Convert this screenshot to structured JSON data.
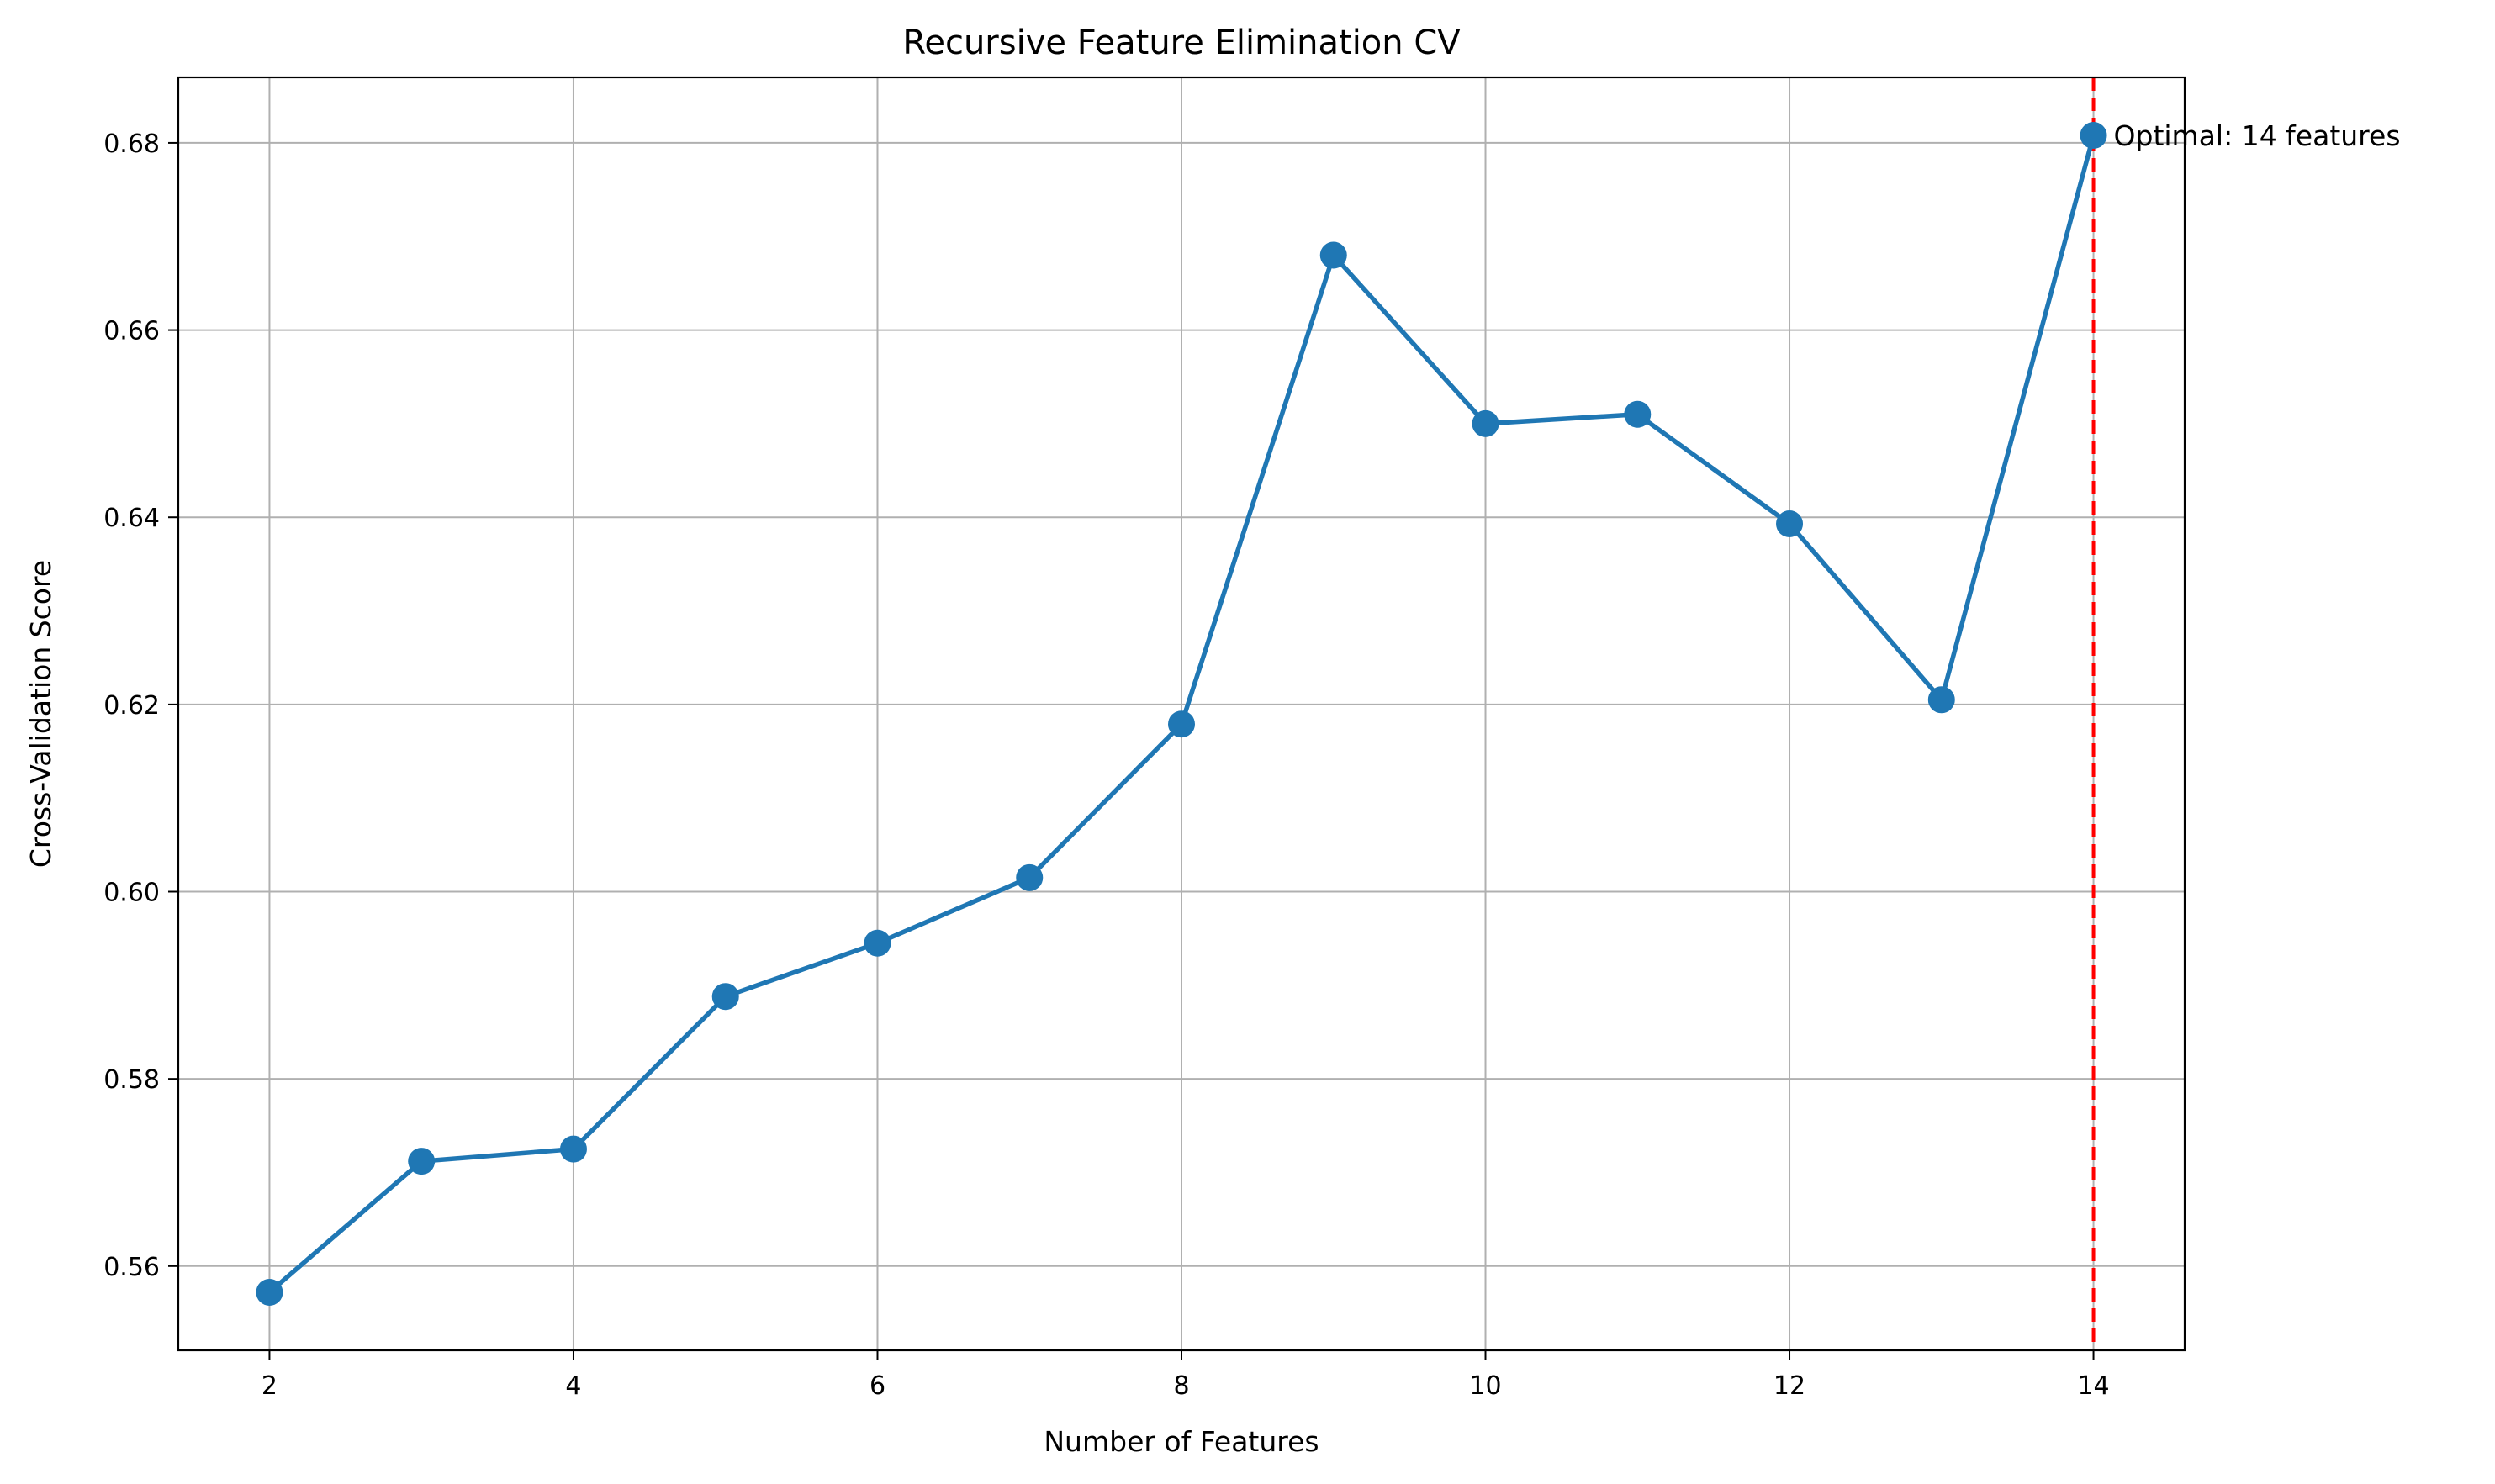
{
  "chart_data": {
    "type": "line",
    "title": "Recursive Feature Elimination CV",
    "xlabel": "Number of Features",
    "ylabel": "Cross-Validation Score",
    "x": [
      2,
      3,
      4,
      5,
      6,
      7,
      8,
      9,
      10,
      11,
      12,
      13,
      14
    ],
    "series": [
      {
        "values": [
          0.5572,
          0.5712,
          0.5725,
          0.5888,
          0.5945,
          0.6015,
          0.6179,
          0.668,
          0.65,
          0.651,
          0.6393,
          0.6205,
          0.6808
        ],
        "color": "#1f77b4",
        "marker": "circle"
      }
    ],
    "xlim": [
      1.4,
      14.6
    ],
    "ylim": [
      0.551,
      0.687
    ],
    "xticks": [
      2,
      4,
      6,
      8,
      10,
      12,
      14
    ],
    "xtick_labels": [
      "2",
      "4",
      "6",
      "8",
      "10",
      "12",
      "14"
    ],
    "yticks": [
      0.56,
      0.58,
      0.6,
      0.62,
      0.64,
      0.66,
      0.68
    ],
    "ytick_labels": [
      "0.56",
      "0.58",
      "0.60",
      "0.62",
      "0.64",
      "0.66",
      "0.68"
    ],
    "grid": true,
    "reference_line": {
      "orientation": "vertical",
      "x": 14,
      "style": "dashed",
      "color": "#ff0000"
    },
    "annotation": {
      "text": "Optimal: 14 features",
      "x": 14,
      "y": 0.6808
    }
  }
}
